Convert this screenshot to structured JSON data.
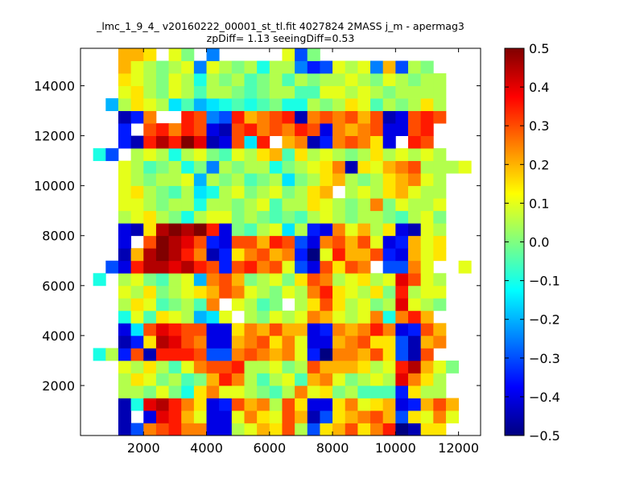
{
  "chart_data": {
    "type": "heatmap",
    "title_line1": "_lmc_1_9_4_ v20160222_00001_st_tl.fit 4027824 2MASS j_m - apermag3",
    "title_line2": "zpDiff= 1.13 seeingDiff=0.53",
    "xlim": [
      0,
      12700
    ],
    "ylim": [
      0,
      15500
    ],
    "x_ticks": [
      2000,
      4000,
      6000,
      8000,
      10000,
      12000
    ],
    "y_ticks": [
      2000,
      4000,
      6000,
      8000,
      10000,
      12000,
      14000
    ],
    "x_tick_labels": [
      "2000",
      "4000",
      "6000",
      "8000",
      "10000",
      "12000"
    ],
    "y_tick_labels": [
      "2000",
      "4000",
      "6000",
      "8000",
      "10000",
      "12000",
      "14000"
    ],
    "x_edges": [
      0,
      400,
      800,
      1200,
      1600,
      2000,
      2400,
      2800,
      3200,
      3600,
      4000,
      4400,
      4800,
      5200,
      5600,
      6000,
      6400,
      6800,
      7200,
      7600,
      8000,
      8400,
      8800,
      9200,
      9600,
      10000,
      10400,
      10800,
      11200,
      11600,
      12000,
      12400
    ],
    "y_edges": [
      0,
      500,
      1000,
      1500,
      2000,
      2500,
      3000,
      3500,
      4000,
      4500,
      5000,
      5500,
      6000,
      6500,
      7000,
      7500,
      8000,
      8500,
      9000,
      9500,
      10000,
      10500,
      11000,
      11500,
      12000,
      12500,
      13000,
      13500,
      14000,
      14500,
      15000,
      15500
    ],
    "row_order": "bottom-to-top",
    "colorbar": {
      "vmin": -0.5,
      "vmax": 0.5,
      "ticks": [
        -0.5,
        -0.4,
        -0.3,
        -0.2,
        -0.1,
        0.0,
        0.1,
        0.2,
        0.3,
        0.4,
        0.5
      ],
      "tick_labels": [
        "−0.5",
        "−0.4",
        "−0.3",
        "−0.2",
        "−0.1",
        "0.0",
        "0.1",
        "0.2",
        "0.3",
        "0.4",
        "0.5"
      ],
      "colormap": "jet"
    },
    "values": [
      [
        null,
        null,
        null,
        -0.45,
        -0.3,
        0.25,
        0.3,
        0.35,
        0.25,
        0.25,
        -0.4,
        -0.4,
        0.05,
        0.1,
        0.2,
        0.15,
        0.3,
        0.05,
        -0.3,
        0.15,
        0.2,
        0.3,
        0.15,
        0.25,
        0.35,
        -0.5,
        -0.45,
        0.15,
        0.15,
        null,
        null
      ],
      [
        null,
        null,
        null,
        -0.45,
        null,
        -0.4,
        0.4,
        0.35,
        0.2,
        0.1,
        -0.4,
        -0.4,
        0.1,
        0.25,
        0.15,
        0.1,
        0.3,
        0.2,
        -0.45,
        -0.3,
        0.15,
        0.2,
        0.25,
        0.3,
        0.2,
        -0.3,
        0.15,
        0.1,
        0.25,
        0.1,
        null
      ],
      [
        null,
        null,
        null,
        -0.45,
        -0.1,
        0.4,
        0.45,
        0.35,
        0.25,
        0.15,
        -0.4,
        -0.35,
        0.3,
        0.2,
        0.25,
        0.05,
        0.3,
        0.15,
        -0.4,
        -0.4,
        0.15,
        0.25,
        0.1,
        0.15,
        0.2,
        -0.4,
        -0.35,
        0.2,
        0.3,
        0.2,
        null
      ],
      [
        null,
        null,
        null,
        0.05,
        0.05,
        0.0,
        0.1,
        0.0,
        -0.1,
        0.15,
        0.25,
        0.1,
        0.1,
        0.05,
        0.0,
        -0.05,
        0.05,
        0.25,
        0.1,
        0.15,
        0.0,
        0.05,
        -0.05,
        -0.05,
        -0.05,
        -0.35,
        0.15,
        0.05,
        0.05,
        null,
        null
      ],
      [
        null,
        null,
        null,
        0.05,
        0.15,
        0.1,
        0.0,
        0.05,
        -0.05,
        0.0,
        0.2,
        0.35,
        0.25,
        0.05,
        -0.05,
        0.05,
        0.1,
        -0.05,
        0.2,
        0.25,
        0.1,
        0.0,
        0.05,
        0.1,
        0.05,
        0.4,
        0.25,
        0.15,
        0.05,
        null,
        null
      ],
      [
        null,
        null,
        null,
        0.1,
        0.05,
        0.15,
        0.05,
        -0.05,
        0.1,
        0.25,
        0.3,
        0.3,
        0.35,
        0.05,
        0.05,
        0.1,
        0.0,
        0.05,
        0.3,
        0.2,
        0.2,
        0.2,
        0.15,
        0.05,
        0.1,
        0.35,
        0.45,
        0.2,
        0.1,
        0.0,
        null
      ],
      [
        null,
        -0.1,
        0.05,
        -0.35,
        0.3,
        -0.45,
        0.35,
        0.35,
        0.35,
        0.3,
        -0.3,
        -0.3,
        0.25,
        0.3,
        0.25,
        0.2,
        0.25,
        0.1,
        -0.35,
        -0.5,
        0.25,
        0.25,
        0.2,
        0.3,
        0.15,
        -0.3,
        -0.45,
        0.3,
        null,
        null,
        null
      ],
      [
        null,
        null,
        null,
        -0.45,
        -0.35,
        0.15,
        0.45,
        0.4,
        0.3,
        0.25,
        -0.4,
        -0.4,
        0.2,
        0.25,
        0.3,
        0.15,
        0.25,
        0.1,
        -0.4,
        -0.4,
        0.2,
        0.25,
        0.3,
        0.15,
        0.15,
        -0.3,
        -0.45,
        0.2,
        0.25,
        null,
        null
      ],
      [
        null,
        null,
        null,
        -0.4,
        -0.15,
        0.3,
        0.4,
        0.35,
        0.3,
        0.3,
        -0.4,
        -0.4,
        0.15,
        0.25,
        0.2,
        0.3,
        0.2,
        0.2,
        -0.4,
        -0.35,
        0.25,
        0.2,
        0.25,
        0.35,
        0.25,
        -0.4,
        -0.35,
        0.3,
        0.2,
        null,
        null
      ],
      [
        null,
        null,
        null,
        -0.1,
        0.1,
        -0.05,
        0.15,
        0.1,
        0.05,
        -0.2,
        -0.15,
        0.1,
        null,
        0.05,
        0.0,
        0.1,
        0.05,
        0.1,
        0.25,
        0.2,
        0.1,
        0.05,
        0.1,
        0.25,
        -0.1,
        0.25,
        0.35,
        0.2,
        null,
        null,
        null
      ],
      [
        null,
        null,
        null,
        0.05,
        0.15,
        0.1,
        -0.05,
        0.0,
        0.05,
        -0.05,
        0.25,
        null,
        0.1,
        0.05,
        -0.05,
        0.0,
        null,
        0.05,
        0.15,
        0.3,
        0.15,
        0.05,
        0.1,
        0.0,
        0.05,
        0.4,
        0.1,
        0.05,
        0.0,
        null,
        null
      ],
      [
        null,
        null,
        null,
        0.1,
        0.05,
        0.15,
        0.0,
        0.05,
        0.1,
        0.15,
        0.2,
        0.3,
        0.25,
        0.1,
        0.05,
        0.0,
        0.1,
        0.05,
        0.25,
        0.35,
        0.15,
        0.1,
        0.05,
        0.15,
        0.0,
        0.35,
        0.05,
        0.1,
        0.1,
        null,
        null
      ],
      [
        null,
        -0.1,
        null,
        0.05,
        0.1,
        0.0,
        -0.05,
        0.05,
        0.1,
        -0.2,
        0.25,
        0.3,
        0.2,
        0.0,
        0.05,
        0.1,
        0.0,
        0.15,
        0.3,
        0.25,
        0.05,
        0.1,
        0.15,
        0.05,
        0.1,
        0.4,
        0.3,
        0.1,
        0.05,
        null,
        null
      ],
      [
        null,
        null,
        -0.3,
        -0.4,
        0.35,
        0.45,
        0.45,
        0.4,
        0.45,
        0.35,
        0.3,
        -0.35,
        0.3,
        0.35,
        0.25,
        0.3,
        0.1,
        -0.3,
        -0.4,
        0.3,
        0.15,
        0.3,
        0.25,
        null,
        -0.3,
        -0.3,
        0.25,
        0.1,
        null,
        null,
        0.1
      ],
      [
        null,
        null,
        null,
        -0.45,
        0.2,
        0.45,
        0.5,
        0.45,
        0.35,
        0.25,
        -0.45,
        -0.35,
        0.15,
        0.25,
        0.3,
        0.2,
        0.25,
        -0.35,
        -0.5,
        0.1,
        0.35,
        0.2,
        0.2,
        0.3,
        -0.35,
        -0.4,
        0.2,
        0.1,
        0.15,
        null,
        null
      ],
      [
        null,
        null,
        null,
        -0.4,
        null,
        0.3,
        0.5,
        0.45,
        0.4,
        0.3,
        -0.35,
        -0.4,
        0.3,
        0.3,
        0.2,
        0.35,
        0.3,
        -0.3,
        -0.4,
        0.25,
        0.3,
        0.2,
        0.3,
        0.1,
        -0.4,
        -0.35,
        0.2,
        0.1,
        0.15,
        null,
        null
      ],
      [
        null,
        null,
        null,
        -0.4,
        -0.45,
        0.15,
        0.45,
        0.5,
        0.45,
        0.5,
        0.35,
        -0.4,
        0.0,
        -0.05,
        0.05,
        0.1,
        -0.15,
        0.05,
        -0.35,
        -0.4,
        0.25,
        0.1,
        0.2,
        0.05,
        0.15,
        -0.4,
        -0.45,
        0.1,
        0.05,
        null,
        null
      ],
      [
        null,
        null,
        null,
        0.05,
        0.1,
        0.15,
        0.05,
        0.0,
        -0.1,
        0.05,
        0.1,
        0.1,
        0.0,
        0.05,
        0.0,
        -0.05,
        0.0,
        -0.05,
        0.05,
        0.1,
        0.05,
        0.0,
        0.05,
        0.05,
        0.0,
        -0.05,
        0.05,
        0.1,
        0.0,
        null,
        null
      ],
      [
        null,
        null,
        null,
        0.1,
        0.1,
        0.05,
        0.0,
        0.05,
        0.05,
        -0.1,
        0.05,
        0.05,
        0.0,
        0.05,
        0.1,
        -0.05,
        0.05,
        0.05,
        0.15,
        0.1,
        0.05,
        0.0,
        0.05,
        0.25,
        0.0,
        0.1,
        0.05,
        0.05,
        0.1,
        null,
        null
      ],
      [
        null,
        null,
        null,
        0.1,
        0.15,
        0.05,
        0.0,
        -0.05,
        0.05,
        -0.15,
        -0.1,
        0.05,
        0.1,
        0.0,
        0.05,
        0.1,
        0.0,
        0.05,
        0.15,
        0.2,
        null,
        0.05,
        0.1,
        0.05,
        0.15,
        0.2,
        0.1,
        0.05,
        0.05,
        null,
        null
      ],
      [
        null,
        null,
        null,
        0.1,
        0.05,
        0.0,
        0.05,
        0.05,
        0.1,
        -0.2,
        0.05,
        0.0,
        0.05,
        -0.05,
        0.0,
        0.05,
        -0.15,
        0.0,
        0.05,
        0.15,
        0.2,
        0.05,
        0.0,
        0.05,
        0.15,
        0.2,
        0.25,
        0.1,
        0.05,
        null,
        null
      ],
      [
        null,
        null,
        null,
        0.1,
        0.05,
        -0.05,
        0.0,
        0.05,
        -0.1,
        0.0,
        -0.25,
        0.05,
        0.0,
        0.05,
        0.05,
        -0.1,
        0.0,
        0.05,
        0.1,
        0.15,
        0.25,
        -0.45,
        0.15,
        0.1,
        0.2,
        0.25,
        0.3,
        0.05,
        0.05,
        0.05,
        0.1
      ],
      [
        null,
        -0.1,
        -0.3,
        null,
        0.05,
        0.1,
        0.05,
        -0.1,
        0.05,
        0.1,
        0.0,
        -0.05,
        0.1,
        0.05,
        0.15,
        0.2,
        -0.05,
        0.15,
        0.05,
        0.1,
        0.05,
        0.0,
        0.05,
        0.15,
        0.05,
        0.1,
        0.05,
        0.1,
        0.05,
        null,
        null
      ],
      [
        null,
        null,
        null,
        -0.35,
        -0.45,
        0.35,
        0.45,
        0.35,
        0.5,
        0.4,
        -0.45,
        -0.4,
        0.3,
        -0.15,
        0.35,
        null,
        0.2,
        0.25,
        -0.45,
        -0.35,
        0.25,
        0.3,
        0.25,
        0.15,
        -0.4,
        null,
        0.35,
        0.3,
        null,
        null,
        null
      ],
      [
        null,
        null,
        null,
        -0.35,
        null,
        0.3,
        0.35,
        0.25,
        0.35,
        0.3,
        -0.4,
        -0.45,
        0.3,
        0.35,
        0.25,
        0.3,
        0.25,
        0.35,
        0.3,
        -0.4,
        0.25,
        0.2,
        0.25,
        0.3,
        -0.4,
        -0.4,
        0.3,
        0.35,
        null,
        null,
        null
      ],
      [
        null,
        null,
        null,
        -0.45,
        -0.35,
        0.25,
        null,
        null,
        0.35,
        0.3,
        -0.25,
        -0.3,
        0.35,
        0.2,
        0.25,
        0.3,
        0.35,
        -0.45,
        0.25,
        0.3,
        0.25,
        0.3,
        0.2,
        0.3,
        -0.45,
        -0.4,
        0.3,
        0.35,
        0.3,
        null,
        null
      ],
      [
        null,
        null,
        -0.2,
        0.05,
        0.15,
        0.1,
        0.05,
        -0.15,
        -0.05,
        -0.2,
        -0.15,
        -0.1,
        -0.05,
        -0.1,
        -0.05,
        0.0,
        -0.1,
        -0.1,
        0.05,
        0.0,
        0.05,
        0.15,
        0.1,
        -0.05,
        0.05,
        0.0,
        0.05,
        0.15,
        0.05,
        null,
        null
      ],
      [
        null,
        null,
        null,
        0.1,
        0.15,
        0.05,
        0.0,
        0.1,
        0.05,
        -0.05,
        0.05,
        0.05,
        0.0,
        -0.05,
        0.0,
        0.05,
        0.05,
        -0.05,
        -0.05,
        0.1,
        0.1,
        0.05,
        0.1,
        0.05,
        0.0,
        0.05,
        0.05,
        0.05,
        0.05,
        null,
        null
      ],
      [
        null,
        null,
        null,
        0.15,
        0.1,
        0.05,
        0.0,
        0.1,
        0.05,
        -0.1,
        0.05,
        0.0,
        0.05,
        -0.05,
        0.0,
        0.05,
        -0.05,
        0.05,
        0.0,
        0.05,
        0.05,
        0.1,
        0.05,
        0.0,
        0.1,
        0.05,
        0.0,
        0.05,
        0.05,
        null,
        null
      ],
      [
        null,
        null,
        null,
        0.2,
        0.1,
        0.05,
        0.0,
        0.05,
        0.1,
        -0.25,
        0.1,
        0.05,
        0.0,
        0.05,
        -0.1,
        0.05,
        0.05,
        -0.25,
        -0.35,
        -0.3,
        0.1,
        0.05,
        0.1,
        -0.25,
        0.2,
        -0.3,
        0.05,
        0.0,
        null,
        null,
        null
      ],
      [
        null,
        null,
        null,
        0.2,
        0.2,
        0.15,
        null,
        0.1,
        0.0,
        null,
        -0.25,
        null,
        null,
        null,
        null,
        null,
        0.1,
        -0.3,
        0.0,
        null,
        null,
        null,
        null,
        null,
        null,
        null,
        null,
        null,
        null,
        null,
        null
      ]
    ]
  }
}
